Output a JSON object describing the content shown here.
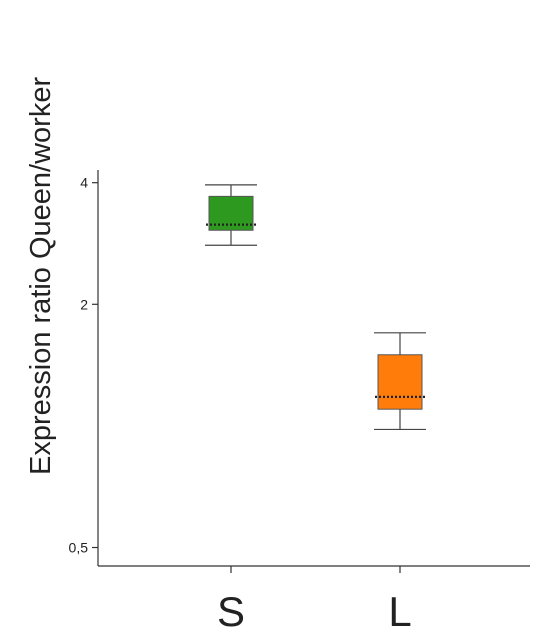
{
  "chart_data": {
    "type": "box",
    "ylabel": "Expression ratio  Queen/worker",
    "yscale": "log2",
    "ylim": [
      0.45,
      4.3
    ],
    "yticks": [
      {
        "value": 0.5,
        "label": "0,5"
      },
      {
        "value": 2,
        "label": "2"
      },
      {
        "value": 4,
        "label": "4"
      }
    ],
    "categories": [
      "S",
      "L"
    ],
    "boxes": [
      {
        "category": "S",
        "whisker_low": 2.8,
        "q1": 3.05,
        "median": 3.15,
        "q3": 3.7,
        "whisker_high": 3.95,
        "color": "#2d9a1f"
      },
      {
        "category": "L",
        "whisker_low": 0.98,
        "q1": 1.1,
        "median": 1.18,
        "q3": 1.5,
        "whisker_high": 1.7,
        "color": "#ff7c0a"
      }
    ],
    "grid": false,
    "legend": "none"
  }
}
